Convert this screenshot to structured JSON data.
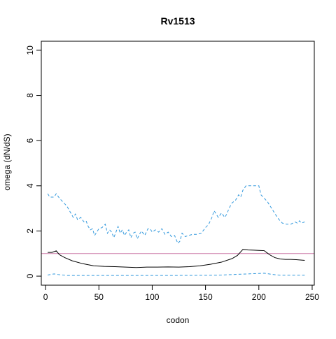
{
  "chart_data": {
    "type": "line",
    "title": "Rv1513",
    "xlabel": "codon",
    "ylabel": "omega (dN/dS)",
    "xlim": [
      -4,
      252
    ],
    "ylim": [
      -0.4,
      10.4
    ],
    "x_ticks": [
      0,
      50,
      100,
      150,
      200,
      250
    ],
    "y_ticks": [
      0,
      2,
      4,
      6,
      8,
      10
    ],
    "grid": false,
    "reference_line": {
      "y": 1,
      "color": "#cc79a7"
    },
    "series": [
      {
        "style": "solid",
        "color": "#000000",
        "points": [
          [
            2,
            1.05
          ],
          [
            6,
            1.05
          ],
          [
            10,
            1.12
          ],
          [
            13,
            0.95
          ],
          [
            18,
            0.82
          ],
          [
            25,
            0.68
          ],
          [
            35,
            0.55
          ],
          [
            45,
            0.46
          ],
          [
            55,
            0.43
          ],
          [
            65,
            0.42
          ],
          [
            75,
            0.4
          ],
          [
            85,
            0.38
          ],
          [
            95,
            0.4
          ],
          [
            105,
            0.4
          ],
          [
            115,
            0.41
          ],
          [
            125,
            0.4
          ],
          [
            135,
            0.42
          ],
          [
            145,
            0.46
          ],
          [
            155,
            0.53
          ],
          [
            165,
            0.62
          ],
          [
            175,
            0.78
          ],
          [
            180,
            0.92
          ],
          [
            185,
            1.18
          ],
          [
            190,
            1.16
          ],
          [
            195,
            1.15
          ],
          [
            200,
            1.14
          ],
          [
            205,
            1.13
          ],
          [
            210,
            0.95
          ],
          [
            215,
            0.82
          ],
          [
            220,
            0.76
          ],
          [
            225,
            0.74
          ],
          [
            230,
            0.74
          ],
          [
            235,
            0.73
          ],
          [
            240,
            0.71
          ],
          [
            243,
            0.7
          ]
        ]
      },
      {
        "style": "dashed",
        "color": "#3399dd",
        "points": [
          [
            2,
            3.65
          ],
          [
            4,
            3.5
          ],
          [
            8,
            3.5
          ],
          [
            10,
            3.65
          ],
          [
            13,
            3.45
          ],
          [
            16,
            3.3
          ],
          [
            20,
            3.1
          ],
          [
            23,
            2.85
          ],
          [
            26,
            2.6
          ],
          [
            28,
            2.75
          ],
          [
            30,
            2.5
          ],
          [
            33,
            2.6
          ],
          [
            36,
            2.4
          ],
          [
            38,
            2.45
          ],
          [
            40,
            2.2
          ],
          [
            42,
            2.05
          ],
          [
            44,
            2.1
          ],
          [
            46,
            1.8
          ],
          [
            48,
            1.95
          ],
          [
            50,
            2.1
          ],
          [
            53,
            2.15
          ],
          [
            56,
            2.3
          ],
          [
            58,
            1.9
          ],
          [
            60,
            2.05
          ],
          [
            62,
            1.95
          ],
          [
            64,
            1.7
          ],
          [
            66,
            1.95
          ],
          [
            68,
            2.2
          ],
          [
            70,
            1.9
          ],
          [
            72,
            2.05
          ],
          [
            74,
            1.8
          ],
          [
            76,
            1.95
          ],
          [
            78,
            2.05
          ],
          [
            80,
            1.7
          ],
          [
            82,
            1.9
          ],
          [
            84,
            1.95
          ],
          [
            86,
            1.65
          ],
          [
            88,
            1.85
          ],
          [
            90,
            2.0
          ],
          [
            93,
            1.8
          ],
          [
            96,
            2.1
          ],
          [
            98,
            2.1
          ],
          [
            100,
            1.95
          ],
          [
            103,
            2.05
          ],
          [
            106,
            1.95
          ],
          [
            109,
            2.1
          ],
          [
            112,
            1.85
          ],
          [
            115,
            1.95
          ],
          [
            118,
            1.75
          ],
          [
            121,
            1.8
          ],
          [
            124,
            1.45
          ],
          [
            126,
            1.55
          ],
          [
            128,
            1.9
          ],
          [
            131,
            1.75
          ],
          [
            134,
            1.8
          ],
          [
            138,
            1.85
          ],
          [
            142,
            1.85
          ],
          [
            146,
            1.9
          ],
          [
            150,
            2.15
          ],
          [
            153,
            2.3
          ],
          [
            156,
            2.6
          ],
          [
            158,
            2.9
          ],
          [
            160,
            2.75
          ],
          [
            162,
            2.6
          ],
          [
            165,
            2.8
          ],
          [
            168,
            2.6
          ],
          [
            170,
            2.75
          ],
          [
            172,
            3.0
          ],
          [
            175,
            3.25
          ],
          [
            178,
            3.35
          ],
          [
            181,
            3.6
          ],
          [
            183,
            3.5
          ],
          [
            185,
            3.8
          ],
          [
            188,
            4.0
          ],
          [
            192,
            4.0
          ],
          [
            196,
            4.0
          ],
          [
            200,
            4.0
          ],
          [
            202,
            3.6
          ],
          [
            205,
            3.45
          ],
          [
            208,
            3.3
          ],
          [
            212,
            3.0
          ],
          [
            216,
            2.7
          ],
          [
            219,
            2.5
          ],
          [
            222,
            2.35
          ],
          [
            226,
            2.3
          ],
          [
            230,
            2.3
          ],
          [
            234,
            2.4
          ],
          [
            236,
            2.35
          ],
          [
            238,
            2.45
          ],
          [
            240,
            2.35
          ],
          [
            243,
            2.4
          ]
        ]
      },
      {
        "style": "dashed",
        "color": "#3399dd",
        "points": [
          [
            2,
            0.05
          ],
          [
            8,
            0.1
          ],
          [
            12,
            0.07
          ],
          [
            20,
            0.03
          ],
          [
            40,
            0.03
          ],
          [
            80,
            0.03
          ],
          [
            120,
            0.03
          ],
          [
            160,
            0.04
          ],
          [
            180,
            0.08
          ],
          [
            190,
            0.1
          ],
          [
            200,
            0.12
          ],
          [
            205,
            0.13
          ],
          [
            212,
            0.08
          ],
          [
            220,
            0.04
          ],
          [
            230,
            0.04
          ],
          [
            243,
            0.04
          ]
        ]
      }
    ]
  }
}
